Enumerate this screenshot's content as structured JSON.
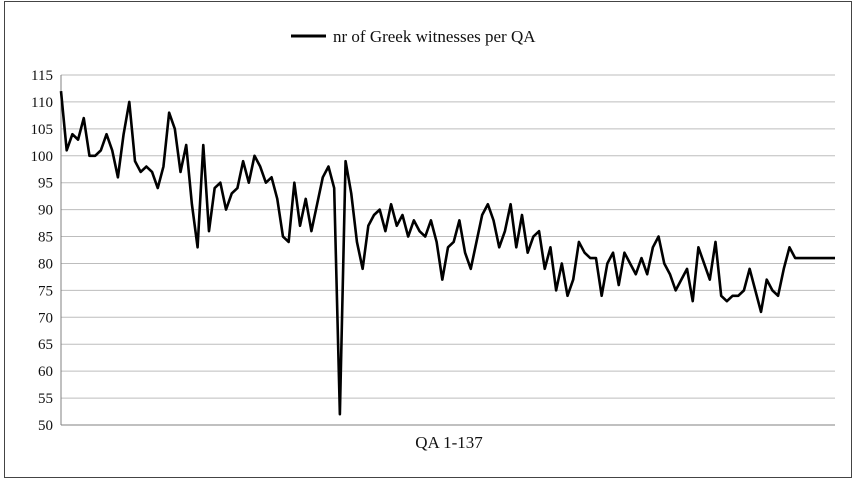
{
  "chart_data": {
    "type": "line",
    "legend": {
      "position": "top",
      "entries": [
        "nr of Greek witnesses per QA"
      ]
    },
    "xlabel": "QA 1-137",
    "ylabel": "",
    "ylim": [
      50,
      115
    ],
    "yticks": [
      50,
      55,
      60,
      65,
      70,
      75,
      80,
      85,
      90,
      95,
      100,
      105,
      110,
      115
    ],
    "grid": {
      "horizontal": true,
      "vertical": false
    },
    "x": [
      1,
      2,
      3,
      4,
      5,
      6,
      7,
      8,
      9,
      10,
      11,
      12,
      13,
      14,
      15,
      16,
      17,
      18,
      19,
      20,
      21,
      22,
      23,
      24,
      25,
      26,
      27,
      28,
      29,
      30,
      31,
      32,
      33,
      34,
      35,
      36,
      37,
      38,
      39,
      40,
      41,
      42,
      43,
      44,
      45,
      46,
      47,
      48,
      49,
      50,
      51,
      52,
      53,
      54,
      55,
      56,
      57,
      58,
      59,
      60,
      61,
      62,
      63,
      64,
      65,
      66,
      67,
      68,
      69,
      70,
      71,
      72,
      73,
      74,
      75,
      76,
      77,
      78,
      79,
      80,
      81,
      82,
      83,
      84,
      85,
      86,
      87,
      88,
      89,
      90,
      91,
      92,
      93,
      94,
      95,
      96,
      97,
      98,
      99,
      100,
      101,
      102,
      103,
      104,
      105,
      106,
      107,
      108,
      109,
      110,
      111,
      112,
      113,
      114,
      115,
      116,
      117,
      118,
      119,
      120,
      121,
      122,
      123,
      124,
      125,
      126,
      127,
      128,
      129,
      130,
      131,
      132,
      133,
      134,
      135,
      136,
      137
    ],
    "series": [
      {
        "name": "nr of Greek witnesses per QA",
        "color": "#000000",
        "values": [
          112,
          101,
          104,
          103,
          107,
          100,
          100,
          101,
          104,
          101,
          96,
          104,
          110,
          99,
          97,
          98,
          97,
          94,
          98,
          108,
          105,
          97,
          102,
          91,
          83,
          102,
          86,
          94,
          95,
          90,
          93,
          94,
          99,
          95,
          100,
          98,
          95,
          96,
          92,
          85,
          84,
          95,
          87,
          92,
          86,
          91,
          96,
          98,
          94,
          52,
          99,
          93,
          84,
          79,
          87,
          89,
          90,
          86,
          91,
          87,
          89,
          85,
          88,
          86,
          85,
          88,
          84,
          77,
          83,
          84,
          88,
          82,
          79,
          84,
          89,
          91,
          88,
          83,
          86,
          91,
          83,
          89,
          82,
          85,
          86,
          79,
          83,
          75,
          80,
          74,
          77,
          84,
          82,
          81,
          81,
          74,
          80,
          82,
          76,
          82,
          80,
          78,
          81,
          78,
          83,
          85,
          80,
          78,
          75,
          77,
          79,
          73,
          83,
          80,
          77,
          84,
          74,
          73,
          74,
          74,
          75,
          79,
          75,
          71,
          77,
          75,
          74,
          79,
          83,
          81,
          81,
          81,
          81,
          81,
          81,
          81,
          81
        ]
      }
    ]
  }
}
